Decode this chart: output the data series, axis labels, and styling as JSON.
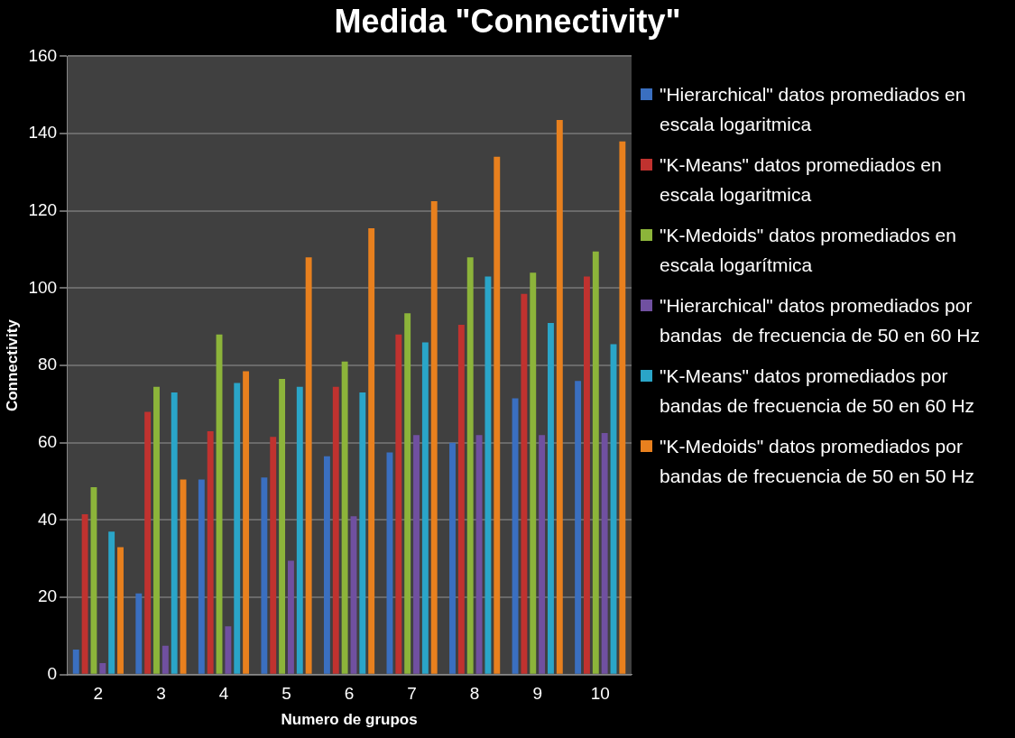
{
  "chart_data": {
    "type": "bar",
    "title": "Medida \"Connectivity\"",
    "xlabel": "Numero de grupos",
    "ylabel": "Connectivity",
    "categories": [
      "2",
      "3",
      "4",
      "5",
      "6",
      "7",
      "8",
      "9",
      "10"
    ],
    "series": [
      {
        "name": "\"Hierarchical\" datos promediados en escala logaritmica",
        "color": "#3a6fc0",
        "values": [
          6.5,
          21,
          50.5,
          51,
          56.5,
          57.5,
          60,
          71.5,
          76
        ]
      },
      {
        "name": "\"K-Means\" datos promediados en escala logaritmica",
        "color": "#c0322f",
        "values": [
          41.5,
          68,
          63,
          61.5,
          74.5,
          88,
          90.5,
          98.5,
          103
        ]
      },
      {
        "name": "\"K-Medoids\" datos promediados en escala logarítmica",
        "color": "#8cb43a",
        "values": [
          48.5,
          74.5,
          88,
          76.5,
          81,
          93.5,
          108,
          104,
          109.5
        ]
      },
      {
        "name": "\"Hierarchical\" datos promediados por bandas  de frecuencia de 50 en 60 Hz",
        "color": "#7050a0",
        "values": [
          3,
          7.5,
          12.5,
          29.5,
          41,
          62,
          62,
          62,
          62.5
        ]
      },
      {
        "name": "\"K-Means\" datos promediados por bandas de frecuencia de 50 en 60 Hz",
        "color": "#2aa5c8",
        "values": [
          37,
          73,
          75.5,
          74.5,
          73,
          86,
          103,
          91,
          85.5
        ]
      },
      {
        "name": "\"K-Medoids\" datos promediados por bandas de frecuencia de 50 en 50 Hz",
        "color": "#e8801e",
        "values": [
          33,
          50.5,
          78.5,
          108,
          115.5,
          122.5,
          134,
          143.5,
          138
        ]
      }
    ],
    "ylim": [
      0,
      160
    ],
    "yticks": [
      0,
      20,
      40,
      60,
      80,
      100,
      120,
      140,
      160
    ],
    "grid": "y",
    "legend": "right"
  }
}
